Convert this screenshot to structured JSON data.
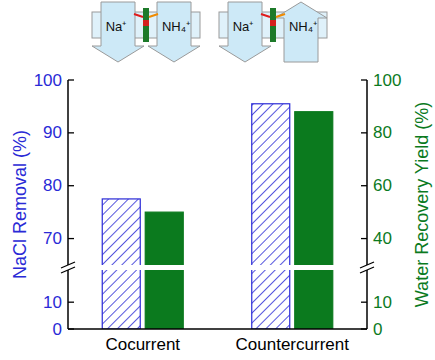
{
  "chart_data": {
    "type": "bar",
    "categories": [
      "Cocurrent",
      "Countercurrent"
    ],
    "series": [
      {
        "name": "NaCl Removal (%)",
        "color": "#2a2ad6",
        "values": [
          77.5,
          95.5
        ]
      },
      {
        "name": "Water Recovery Yield (%)",
        "color": "#0b7a1e",
        "values": [
          50,
          88
        ],
        "axis": "y2"
      }
    ],
    "ylim": [
      0,
      100
    ],
    "yticks": [
      0,
      10,
      70,
      80,
      90,
      100
    ],
    "y2lim": [
      0,
      100
    ],
    "y2ticks": [
      0,
      10,
      40,
      60,
      80,
      100
    ],
    "annotations": [
      "Na⁺",
      "NH₄⁺",
      "Na⁺",
      "NH₄⁺"
    ]
  }
}
